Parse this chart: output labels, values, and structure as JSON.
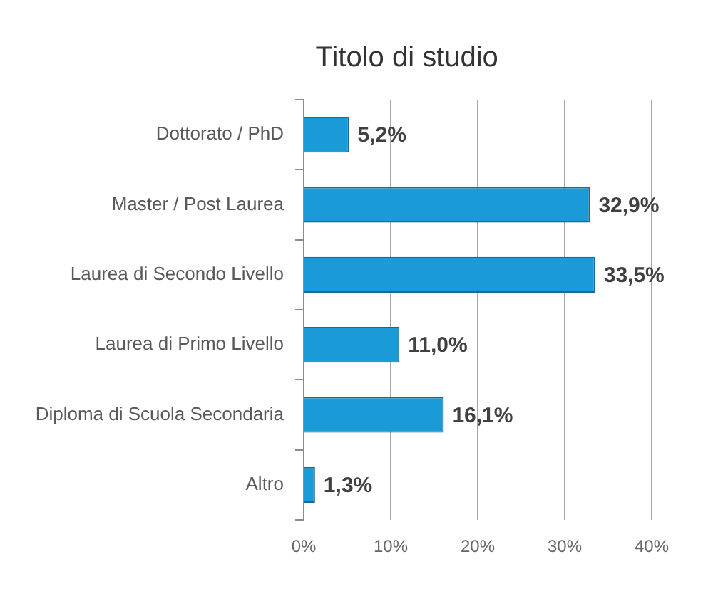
{
  "chart_data": {
    "type": "bar",
    "orientation": "horizontal",
    "title": "Titolo di studio",
    "categories": [
      "Dottorato / PhD",
      "Master / Post Laurea",
      "Laurea di Secondo Livello",
      "Laurea di Primo Livello",
      "Diploma di Scuola Secondaria",
      "Altro"
    ],
    "values": [
      5.2,
      32.9,
      33.5,
      11.0,
      16.1,
      1.3
    ],
    "color": "#1a9ad6",
    "value_labels": [
      "5,2%",
      "32,9%",
      "33,5%",
      "11,0%",
      "16,1%",
      "1,3%"
    ],
    "xlim": [
      0,
      40
    ],
    "xticks": [
      {
        "value": 0,
        "label": "0%"
      },
      {
        "value": 10,
        "label": "10%"
      },
      {
        "value": 20,
        "label": "20%"
      },
      {
        "value": 30,
        "label": "30%"
      },
      {
        "value": 40,
        "label": "40%"
      }
    ],
    "grid": "x"
  }
}
